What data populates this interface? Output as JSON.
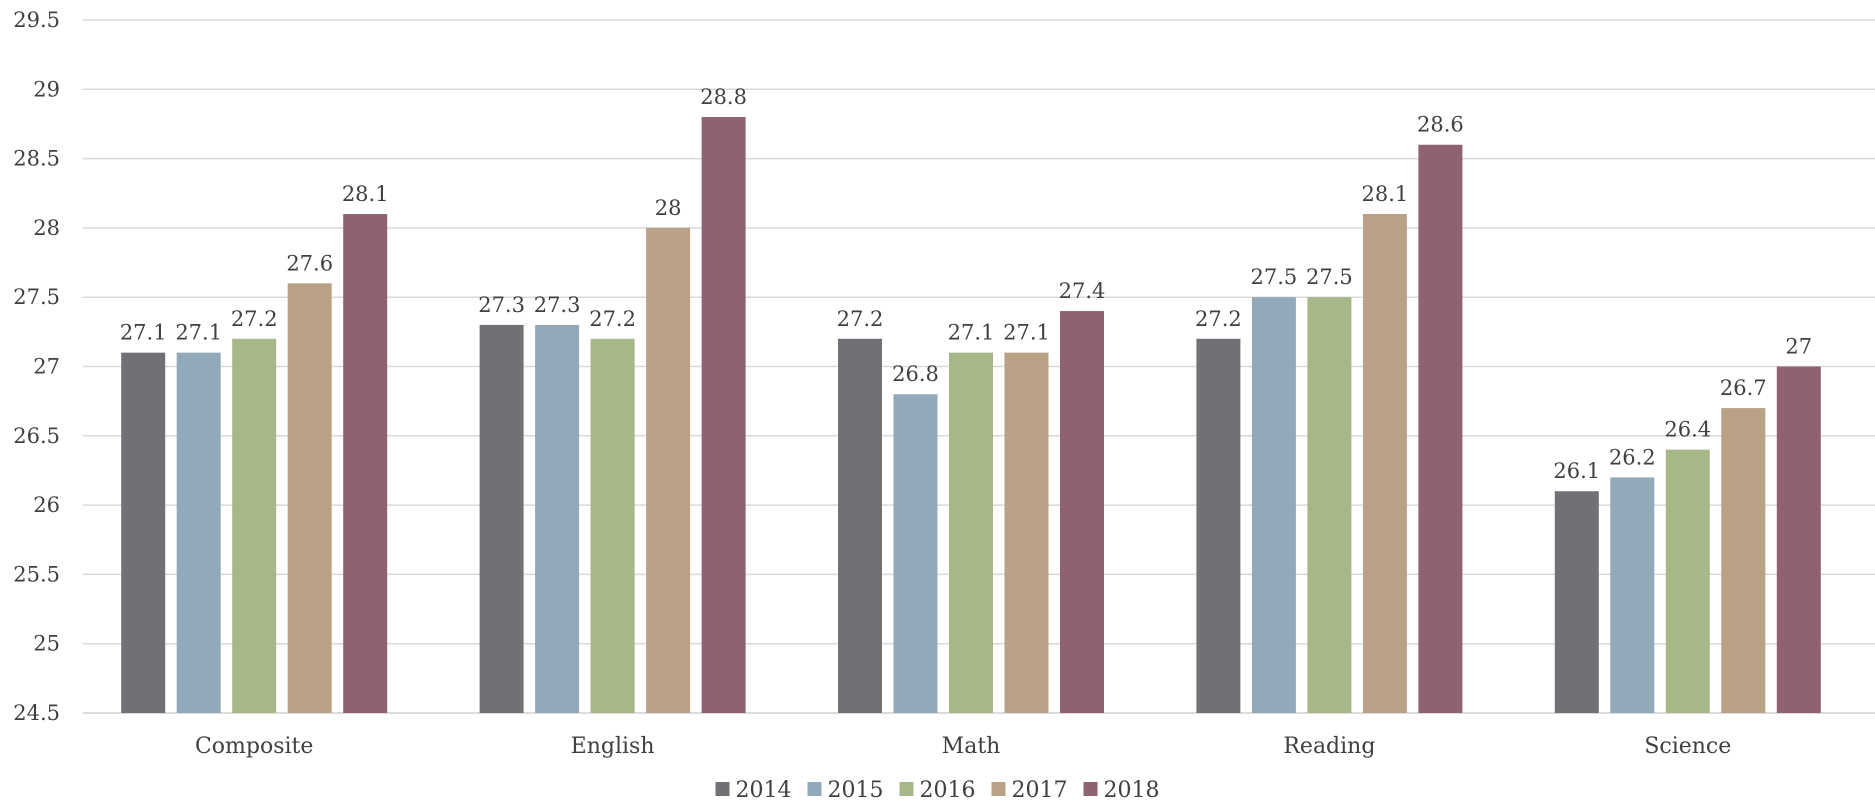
{
  "chart_data": {
    "type": "bar",
    "categories": [
      "Composite",
      "English",
      "Math",
      "Reading",
      "Science"
    ],
    "series": [
      {
        "name": "2014",
        "color": "#717075",
        "values": [
          27.1,
          27.3,
          27.2,
          27.2,
          26.1
        ]
      },
      {
        "name": "2015",
        "color": "#92a9ba",
        "values": [
          27.1,
          27.3,
          26.8,
          27.5,
          26.2
        ]
      },
      {
        "name": "2016",
        "color": "#a7b888",
        "values": [
          27.2,
          27.2,
          27.1,
          27.5,
          26.4
        ]
      },
      {
        "name": "2017",
        "color": "#b9a186",
        "values": [
          27.6,
          28.0,
          27.1,
          28.1,
          26.7
        ]
      },
      {
        "name": "2018",
        "color": "#8e6272",
        "values": [
          28.1,
          28.8,
          27.4,
          28.6,
          27.0
        ]
      }
    ],
    "yticks": [
      "24.5",
      "25",
      "25.5",
      "26",
      "26.5",
      "27",
      "27.5",
      "28",
      "28.5",
      "29",
      "29.5"
    ],
    "ylim": [
      24.5,
      29.5
    ],
    "grid": true,
    "legend": "bottom",
    "title": "",
    "xlabel": "",
    "ylabel": ""
  }
}
